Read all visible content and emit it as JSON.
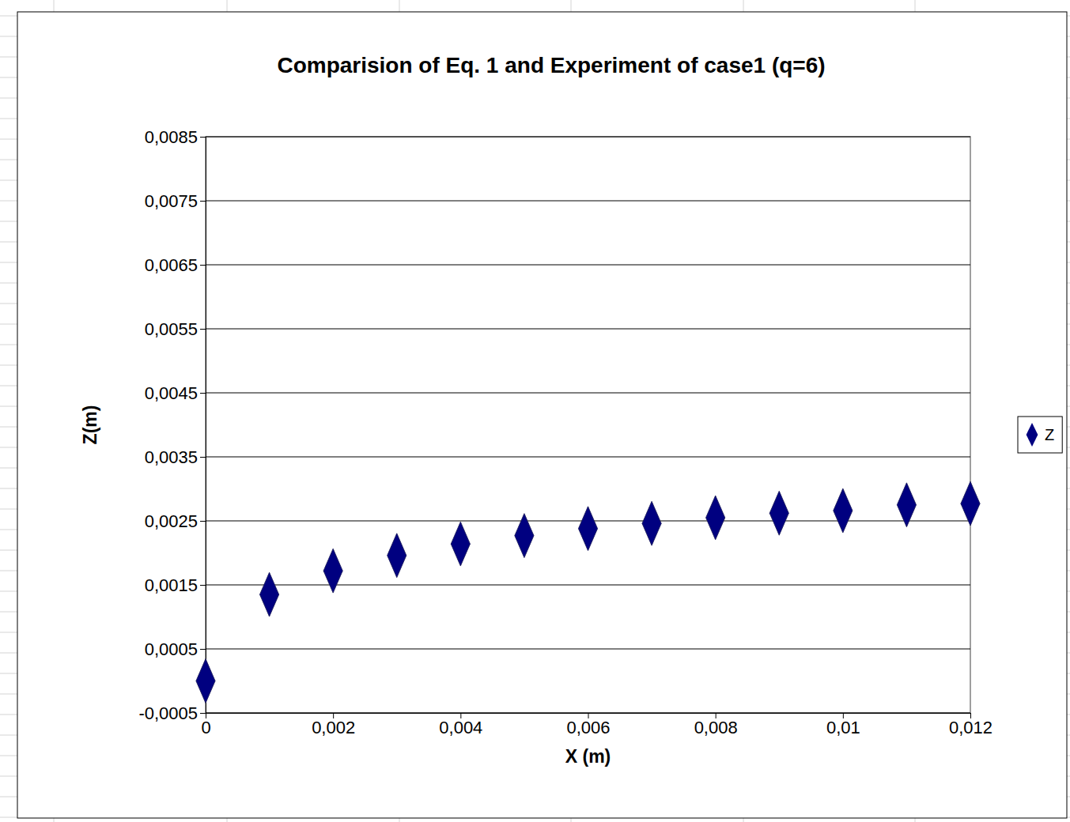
{
  "chart_data": {
    "type": "scatter",
    "title": "Comparision of Eq. 1 and Experiment of case1 (q=6)",
    "x_label": "X (m)",
    "y_label": "Z(m)",
    "x": [
      0,
      0.001,
      0.002,
      0.003,
      0.004,
      0.005,
      0.006,
      0.007,
      0.008,
      0.009,
      0.01,
      0.011,
      0.012
    ],
    "series": [
      {
        "name": "Z",
        "color": "#000080",
        "marker": "diamond",
        "values": [
          0.0,
          0.00135,
          0.00172,
          0.00196,
          0.00214,
          0.00227,
          0.00238,
          0.00246,
          0.00255,
          0.00262,
          0.00266,
          0.00275,
          0.00277
        ]
      }
    ],
    "xlim": [
      0,
      0.012
    ],
    "ylim": [
      -0.0005,
      0.0085
    ],
    "xticks": [
      {
        "value": 0,
        "label": "0"
      },
      {
        "value": 0.002,
        "label": "0,002"
      },
      {
        "value": 0.004,
        "label": "0,004"
      },
      {
        "value": 0.006,
        "label": "0,006"
      },
      {
        "value": 0.008,
        "label": "0,008"
      },
      {
        "value": 0.01,
        "label": "0,01"
      },
      {
        "value": 0.012,
        "label": "0,012"
      }
    ],
    "yticks": [
      {
        "value": -0.0005,
        "label": "-0,0005"
      },
      {
        "value": 0.0005,
        "label": "0,0005"
      },
      {
        "value": 0.0015,
        "label": "0,0015"
      },
      {
        "value": 0.0025,
        "label": "0,0025"
      },
      {
        "value": 0.0035,
        "label": "0,0035"
      },
      {
        "value": 0.0045,
        "label": "0,0045"
      },
      {
        "value": 0.0055,
        "label": "0,0055"
      },
      {
        "value": 0.0065,
        "label": "0,0065"
      },
      {
        "value": 0.0075,
        "label": "0,0075"
      },
      {
        "value": 0.0085,
        "label": "0,0085"
      }
    ],
    "grid": true,
    "legend": "right"
  }
}
